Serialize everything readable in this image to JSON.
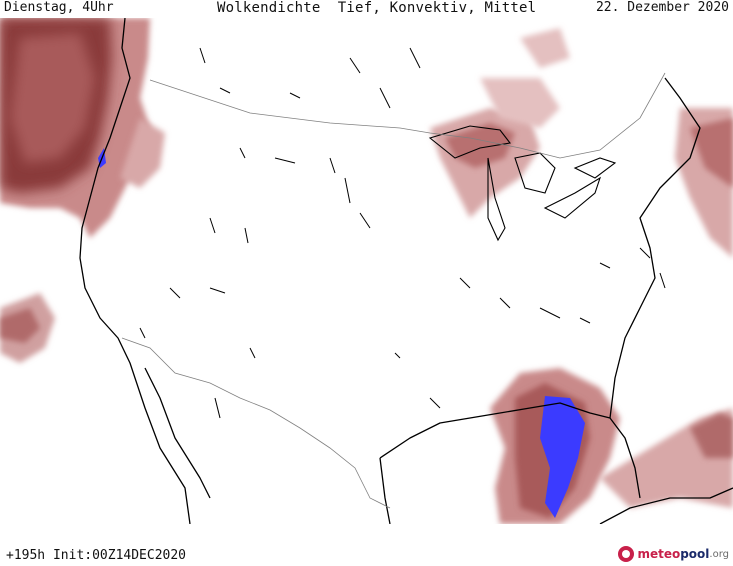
{
  "header": {
    "left": "Dienstag, 4Uhr",
    "center": "Wolkendichte  Tief, Konvektiv, Mittel",
    "right": "22. Dezember 2020"
  },
  "footer": {
    "run_info": "+195h Init:00Z14DEC2020"
  },
  "brand": {
    "part1": "meteo",
    "part2": "pool",
    "part3": ".org"
  },
  "colors": {
    "cloud_light": "#e8c8c8",
    "cloud_mid": "#c98a8a",
    "cloud_dark": "#8a3a3a",
    "convective_max": "#3b3bff",
    "coastline": "#000000",
    "border": "#808080"
  }
}
